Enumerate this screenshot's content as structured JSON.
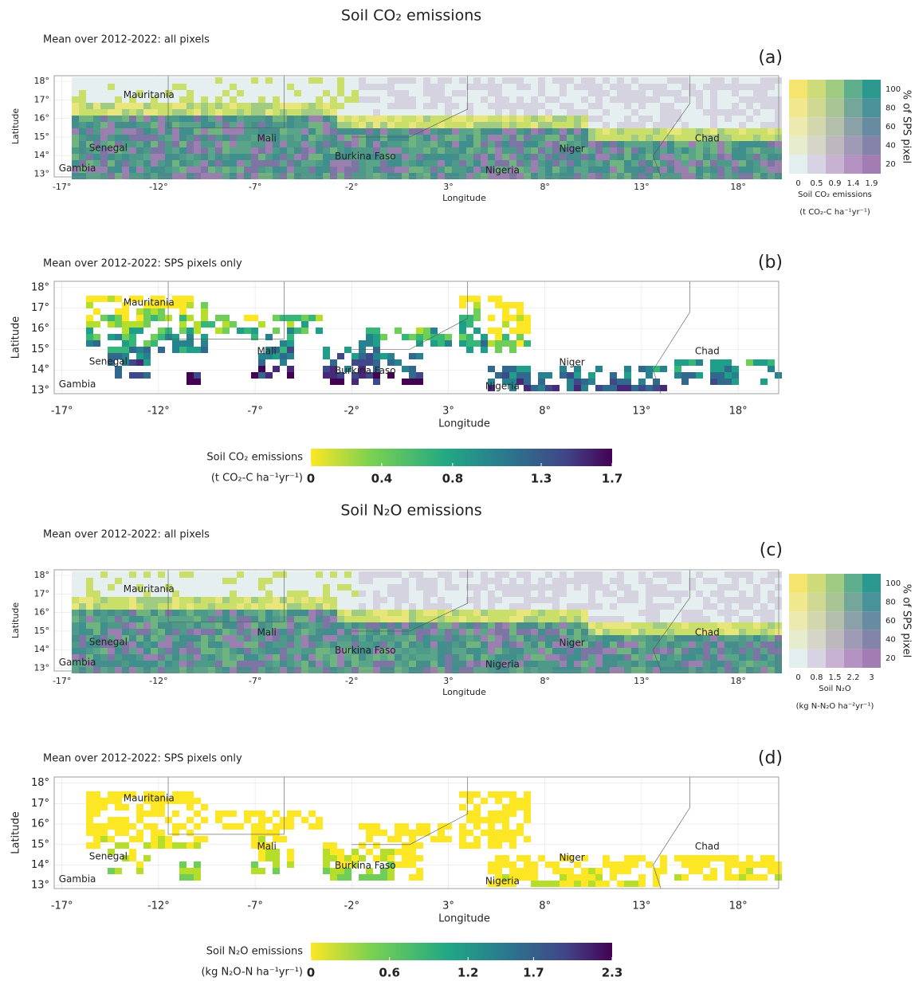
{
  "axes": {
    "x_label": "Longitude",
    "y_label": "Latitude",
    "xlim": [
      -17.4,
      20.1
    ],
    "ylim": [
      12.85,
      18.3
    ],
    "xticks": [
      {
        "value": -17,
        "label": "-17°"
      },
      {
        "value": -12,
        "label": "-12°"
      },
      {
        "value": -7,
        "label": "-7°"
      },
      {
        "value": -2,
        "label": "-2°"
      },
      {
        "value": 3,
        "label": "3°"
      },
      {
        "value": 8,
        "label": "8°"
      },
      {
        "value": 13,
        "label": "13°"
      },
      {
        "value": 18,
        "label": "18°"
      }
    ],
    "yticks": [
      {
        "value": 13,
        "label": "13°"
      },
      {
        "value": 14,
        "label": "14°"
      },
      {
        "value": 15,
        "label": "15°"
      },
      {
        "value": 16,
        "label": "16°"
      },
      {
        "value": 17,
        "label": "17°"
      },
      {
        "value": 18,
        "label": "18°"
      }
    ]
  },
  "countries": [
    "Mauritania",
    "Senegal",
    "Gambia",
    "Mali",
    "Burkina Faso",
    "Nigeria",
    "Niger",
    "Chad"
  ],
  "sections": [
    {
      "title": "Soil CO₂ emissions",
      "panels": [
        {
          "subtitle": "Mean over 2012-2022: all pixels",
          "tag": "(a)"
        },
        {
          "subtitle": "Mean over 2012-2022: SPS pixels only",
          "tag": "(b)"
        }
      ],
      "bivariate_legend": {
        "x_label": "Soil CO₂ emissions",
        "x_unit": "(t CO₂-C ha⁻¹yr⁻¹)",
        "x_ticks": [
          0,
          0.5,
          0.9,
          1.4,
          1.9
        ],
        "y_label": "% of SPS pixel",
        "y_ticks": [
          20,
          40,
          60,
          80,
          100
        ]
      },
      "colorbar": {
        "label": "Soil CO₂ emissions",
        "unit": "(t CO₂-C ha⁻¹yr⁻¹)",
        "lim": [
          0,
          1.7
        ],
        "ticks": [
          0,
          0.4,
          0.8,
          1.3,
          1.7
        ]
      }
    },
    {
      "title": "Soil N₂O emissions",
      "panels": [
        {
          "subtitle": "Mean over 2012-2022: all pixels",
          "tag": "(c)"
        },
        {
          "subtitle": "Mean over 2012-2022: SPS pixels only",
          "tag": "(d)"
        }
      ],
      "bivariate_legend": {
        "x_label": "Soil N₂O",
        "x_unit": "(kg N-N₂O ha⁻²yr⁻¹)",
        "x_ticks": [
          0,
          0.8,
          1.5,
          2.2,
          3
        ],
        "y_label": "% of SPS pixel",
        "y_ticks": [
          20,
          40,
          60,
          80,
          100
        ]
      },
      "colorbar": {
        "label": "Soil N₂O emissions",
        "unit": "(kg N₂O-N ha⁻¹yr⁻¹)",
        "lim": [
          0,
          2.3
        ],
        "ticks": [
          0,
          0.6,
          1.2,
          1.7,
          2.3
        ]
      }
    }
  ]
}
